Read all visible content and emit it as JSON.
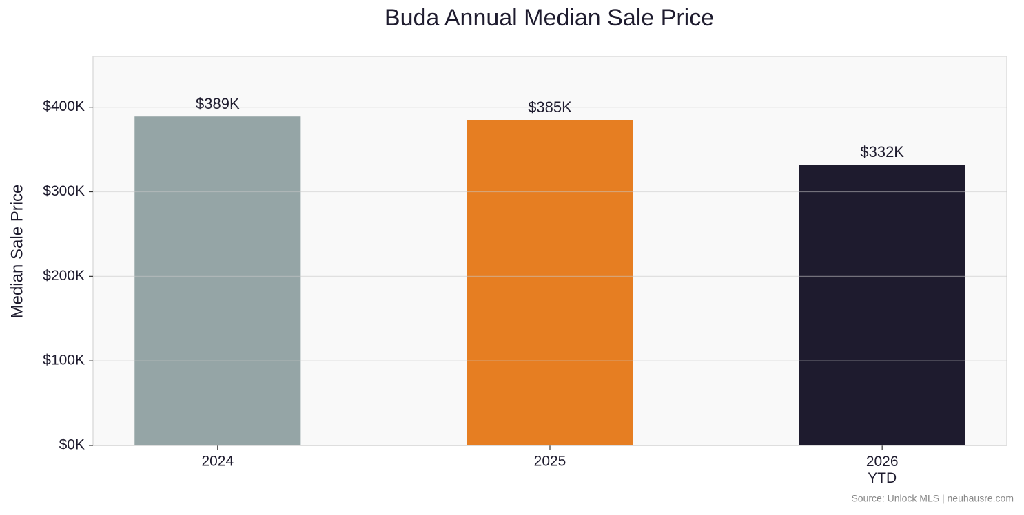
{
  "chart_data": {
    "type": "bar",
    "title": "Buda Annual Median Sale Price",
    "y_label": "Median Sale Price",
    "source": "Source: Unlock MLS | neuhausre.com",
    "categories": [
      "2024",
      "2025",
      "2026\nYTD"
    ],
    "values": [
      389000,
      385000,
      332000
    ],
    "value_labels": [
      "$389K",
      "$385K",
      "$332K"
    ],
    "colors": [
      "#95a5a6",
      "#e67e22",
      "#1e1b2e"
    ],
    "ylim": [
      0,
      460000
    ],
    "yticks": [
      {
        "value": 0,
        "label": "$0K"
      },
      {
        "value": 100000,
        "label": "$100K"
      },
      {
        "value": 200000,
        "label": "$200K"
      },
      {
        "value": 300000,
        "label": "$300K"
      },
      {
        "value": 400000,
        "label": "$400K"
      }
    ],
    "grid": true
  }
}
